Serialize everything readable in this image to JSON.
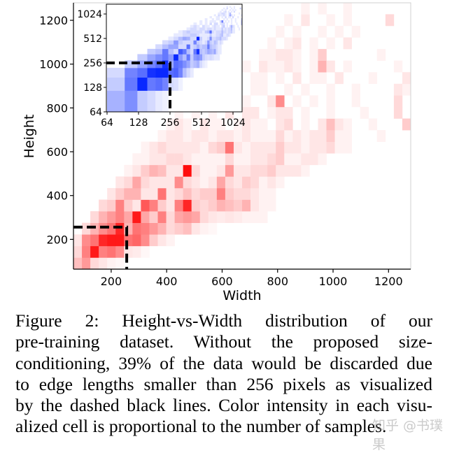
{
  "chart_data": {
    "type": "heatmap",
    "xlabel": "Width",
    "ylabel": "Height",
    "xlim": [
      64,
      1280
    ],
    "ylim": [
      64,
      1280
    ],
    "x_ticks": [
      200,
      400,
      600,
      800,
      1000,
      1200
    ],
    "y_ticks": [
      200,
      400,
      600,
      800,
      1000,
      1200
    ],
    "grid": false,
    "colormap": "white-to-red",
    "color": "#ff0000",
    "bin_x_start": 64,
    "bin_x_width": 30.4,
    "bin_y_start": 64,
    "bin_y_height": 52.9,
    "threshold": {
      "value": 256,
      "style": "dashed",
      "color": "#000000"
    },
    "rows": [
      [
        0.25,
        0.4,
        0.15,
        0.1,
        0.05,
        0.03
      ],
      [
        0.15,
        0.5,
        0.9,
        0.5,
        0.55,
        0.45,
        0.1,
        0.08,
        0.03
      ],
      [
        0.1,
        0.45,
        0.55,
        0.85,
        0.9,
        0.9,
        0.55,
        0.6,
        0.45,
        0.2,
        0.1,
        0.05
      ],
      [
        0,
        0.15,
        0.3,
        0.45,
        0.55,
        0.85,
        0.3,
        0.55,
        0.5,
        0.4,
        0.3,
        0.15,
        0.2,
        0.25,
        0.1,
        0.05,
        0.03
      ],
      [
        0,
        0,
        0.15,
        0.3,
        0.4,
        0.5,
        0.35,
        0.9,
        0.35,
        0.2,
        0.5,
        0.15,
        0.35,
        0.4,
        0.35,
        0.15,
        0.1,
        0.08,
        0.1,
        0.08,
        0.05,
        0.05,
        0.05
      ],
      [
        0,
        0,
        0,
        0.15,
        0.2,
        0.5,
        0.2,
        0.1,
        0.65,
        0.5,
        0.2,
        0.1,
        0.5,
        0.85,
        0.2,
        0.15,
        0.2,
        0.3,
        0.25,
        0.2,
        0.3,
        0.1,
        0.05,
        0.05
      ],
      [
        0,
        0,
        0,
        0,
        0.1,
        0.2,
        0.3,
        0.3,
        0.1,
        0.1,
        0.55,
        0.1,
        0.15,
        0.25,
        0.15,
        0.2,
        0.2,
        0.5,
        0.2,
        0.15,
        0.15,
        0.1,
        0.05,
        0.05
      ],
      [
        0,
        0,
        0,
        0,
        0,
        0.1,
        0.15,
        0.35,
        0.15,
        0.1,
        0.1,
        0.1,
        0.45,
        0.15,
        0.1,
        0.05,
        0.1,
        0.35,
        0.15,
        0.1,
        0.2,
        0.15,
        0.05,
        0.1,
        0.05
      ],
      [
        0,
        0,
        0,
        0,
        0,
        0,
        0.05,
        0.1,
        0.2,
        0.3,
        0.25,
        0.1,
        0.1,
        0.95,
        0.15,
        0.05,
        0.05,
        0.1,
        0.4,
        0.1,
        0.1,
        0.15,
        0.15,
        0.2,
        0.1,
        0.1,
        0.1,
        0.05
      ],
      [
        0,
        0,
        0,
        0,
        0,
        0,
        0,
        0.05,
        0.05,
        0.1,
        0.1,
        0.15,
        0.15,
        0.1,
        0.05,
        0.05,
        0.05,
        0.05,
        0.15,
        0.05,
        0.05,
        0.1,
        0.1,
        0.15,
        0.2,
        0.05,
        0.05,
        0.1,
        0.1,
        0.05
      ],
      [
        [
          8,
          0.05
        ],
        [
          9,
          0.1
        ],
        [
          10,
          0.15
        ],
        [
          11,
          0.1
        ],
        [
          12,
          0.1
        ],
        [
          13,
          0.1
        ],
        [
          14,
          0.1
        ],
        [
          15,
          0.05
        ],
        [
          16,
          0.15
        ],
        [
          17,
          0.2
        ],
        [
          18,
          0.55
        ],
        [
          19,
          0.1
        ],
        [
          20,
          0.05
        ],
        [
          21,
          0.1
        ],
        [
          22,
          0.1
        ],
        [
          23,
          0.1
        ],
        [
          24,
          0.2
        ],
        [
          25,
          0.1
        ],
        [
          26,
          0.1
        ],
        [
          27,
          0.05
        ],
        [
          28,
          0.1
        ],
        [
          29,
          0.1
        ],
        [
          30,
          0.15
        ],
        [
          31,
          0.05
        ],
        [
          32,
          0.05
        ]
      ],
      [
        [
          10,
          0.05
        ],
        [
          11,
          0.1
        ],
        [
          12,
          0.1
        ],
        [
          13,
          0.05
        ],
        [
          14,
          0.1
        ],
        [
          15,
          0.1
        ],
        [
          16,
          0.05
        ],
        [
          17,
          0.1
        ],
        [
          18,
          0.1
        ],
        [
          19,
          0.05
        ],
        [
          20,
          0.1
        ],
        [
          21,
          0.05
        ],
        [
          22,
          0.05
        ],
        [
          23,
          0.05
        ],
        [
          24,
          0.15
        ],
        [
          25,
          0.05
        ],
        [
          26,
          0.1
        ],
        [
          27,
          0.05
        ],
        [
          28,
          0.1
        ],
        [
          29,
          0.1
        ],
        [
          30,
          0.2
        ],
        [
          31,
          0.05
        ],
        [
          32,
          0.05
        ],
        [
          36,
          0.05
        ]
      ],
      [
        [
          11,
          0.05
        ],
        [
          12,
          0.1
        ],
        [
          13,
          0.05
        ],
        [
          15,
          0.1
        ],
        [
          16,
          0.05
        ],
        [
          17,
          0.05
        ],
        [
          19,
          0.05
        ],
        [
          20,
          0.1
        ],
        [
          21,
          0.05
        ],
        [
          22,
          0.05
        ],
        [
          24,
          0.1
        ],
        [
          25,
          0.15
        ],
        [
          27,
          0.05
        ],
        [
          29,
          0.1
        ],
        [
          30,
          0.25
        ],
        [
          31,
          0.1
        ],
        [
          32,
          0.05
        ],
        [
          35,
          0.05
        ],
        [
          39,
          0.2
        ]
      ],
      [
        [
          12,
          0.05
        ],
        [
          14,
          0.05
        ],
        [
          16,
          0.05
        ],
        [
          18,
          0.1
        ],
        [
          20,
          0.1
        ],
        [
          21,
          0.1
        ],
        [
          23,
          0.05
        ],
        [
          24,
          0.1
        ],
        [
          25,
          0.1
        ],
        [
          27,
          0.05
        ],
        [
          30,
          0.05
        ],
        [
          34,
          0.05
        ],
        [
          38,
          0.15
        ]
      ],
      [
        [
          14,
          0.05
        ],
        [
          16,
          0.05
        ],
        [
          18,
          0.05
        ],
        [
          19,
          0.05
        ],
        [
          20,
          0.05
        ],
        [
          23,
          0.1
        ],
        [
          24,
          0.45
        ],
        [
          26,
          0.05
        ],
        [
          28,
          0.05
        ],
        [
          30,
          0.05
        ],
        [
          33,
          0.05
        ],
        [
          38,
          0.15
        ]
      ],
      [
        [
          16,
          0.05
        ],
        [
          19,
          0.05
        ],
        [
          21,
          0.05
        ],
        [
          22,
          0.05
        ],
        [
          25,
          0.05
        ],
        [
          27,
          0.05
        ],
        [
          30,
          0.05
        ],
        [
          33,
          0.05
        ],
        [
          38,
          0.1
        ],
        [
          39,
          0.05
        ]
      ],
      [
        [
          18,
          0.05
        ],
        [
          21,
          0.05
        ],
        [
          22,
          0.05
        ],
        [
          24,
          0.05
        ],
        [
          26,
          0.1
        ],
        [
          28,
          0.05
        ],
        [
          29,
          0.05
        ],
        [
          31,
          0.1
        ],
        [
          35,
          0.05
        ],
        [
          39,
          0.1
        ]
      ],
      [
        [
          20,
          0.05
        ],
        [
          22,
          0.1
        ],
        [
          23,
          0.05
        ],
        [
          24,
          0.05
        ],
        [
          25,
          0.1
        ],
        [
          26,
          0.05
        ],
        [
          28,
          0.05
        ],
        [
          29,
          0.3
        ],
        [
          30,
          0.1
        ],
        [
          32,
          0.05
        ],
        [
          38,
          0.05
        ]
      ],
      [
        [
          22,
          0.05
        ],
        [
          23,
          0.05
        ],
        [
          24,
          0.1
        ],
        [
          25,
          0.1
        ],
        [
          26,
          0.05
        ],
        [
          28,
          0.05
        ],
        [
          29,
          0.2
        ],
        [
          36,
          0.05
        ]
      ],
      [
        [
          23,
          0.05
        ],
        [
          25,
          0.05
        ],
        [
          26,
          0.1
        ],
        [
          28,
          0.05
        ],
        [
          30,
          0.05
        ],
        [
          32,
          0.1
        ]
      ],
      [
        [
          24,
          0.05
        ],
        [
          26,
          0.05
        ],
        [
          29,
          0.05
        ],
        [
          31,
          0.05
        ],
        [
          33,
          0.05
        ]
      ],
      [
        [
          25,
          0.05
        ],
        [
          27,
          0.1
        ],
        [
          30,
          0.05
        ],
        [
          32,
          0.05
        ],
        [
          37,
          0.15
        ]
      ],
      [
        [
          27,
          0.05
        ],
        [
          29,
          0.05
        ],
        [
          32,
          0.05
        ]
      ]
    ],
    "inset": {
      "type": "heatmap",
      "scale": "log2",
      "xlim": [
        64,
        1280
      ],
      "ylim": [
        64,
        1280
      ],
      "x_ticks": [
        "64",
        "128",
        "256",
        "512",
        "1024"
      ],
      "y_ticks": [
        "64",
        "128",
        "256",
        "512",
        "1024"
      ],
      "colormap": "white-to-blue",
      "color": "#0020ff",
      "threshold": 256,
      "placement": "top-left"
    }
  },
  "caption": {
    "lines": [
      "Figure 2:   Height-vs-Width distribution of our",
      "pre-training dataset.  Without the proposed size-",
      "conditioning, 39% of the data would be discarded due",
      "to edge lengths smaller than 256 pixels as visualized",
      "by the dashed black lines. Color intensity in each visu-",
      "alized cell is proportional to the number of samples."
    ]
  },
  "watermark": "知乎 @书璞果"
}
